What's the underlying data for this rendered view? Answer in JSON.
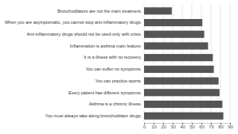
{
  "chart_data": {
    "type": "bar",
    "orientation": "horizontal",
    "categories": [
      "You must always take along bronchodilator drugs.",
      "Asthma is a chronic illness.",
      "Every patient has different symptoms.",
      "You can practice sports.",
      "You can suffer no symptoms.",
      "It is a illness with no recovery.",
      "Inflammation is asthma main feature.",
      "Anti-inflammatory drugs should not be used only with crisis.",
      "When you are asymptomatic, you cannot stop anti-inflammatory drugs.",
      "Bronchodilators are not the main treatment."
    ],
    "values": [
      83,
      82,
      79,
      78,
      73,
      72,
      67,
      63,
      61,
      29
    ],
    "color": "#555555",
    "xlim": [
      0,
      90
    ],
    "xticks": [
      0,
      10,
      20,
      30,
      40,
      50,
      60,
      70,
      80,
      90
    ],
    "grid": true
  }
}
